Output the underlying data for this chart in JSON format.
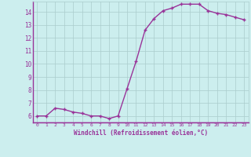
{
  "x": [
    0,
    1,
    2,
    3,
    4,
    5,
    6,
    7,
    8,
    9,
    10,
    11,
    12,
    13,
    14,
    15,
    16,
    17,
    18,
    19,
    20,
    21,
    22,
    23
  ],
  "y": [
    6.0,
    6.0,
    6.6,
    6.5,
    6.3,
    6.2,
    6.0,
    6.0,
    5.8,
    6.0,
    8.1,
    10.2,
    12.6,
    13.5,
    14.1,
    14.3,
    14.6,
    14.6,
    14.6,
    14.1,
    13.9,
    13.8,
    13.6,
    13.4
  ],
  "line_color": "#993399",
  "marker": "+",
  "marker_size": 3,
  "background_color": "#cceeee",
  "grid_color": "#aacccc",
  "xlabel": "Windchill (Refroidissement éolien,°C)",
  "ylabel": "",
  "xlim": [
    -0.5,
    23.5
  ],
  "ylim": [
    5.5,
    14.8
  ],
  "yticks": [
    6,
    7,
    8,
    9,
    10,
    11,
    12,
    13,
    14
  ],
  "xticks": [
    0,
    1,
    2,
    3,
    4,
    5,
    6,
    7,
    8,
    9,
    10,
    11,
    12,
    13,
    14,
    15,
    16,
    17,
    18,
    19,
    20,
    21,
    22,
    23
  ],
  "title_color": "#993399",
  "label_color": "#993399",
  "tick_color": "#993399",
  "line_width": 1.0
}
